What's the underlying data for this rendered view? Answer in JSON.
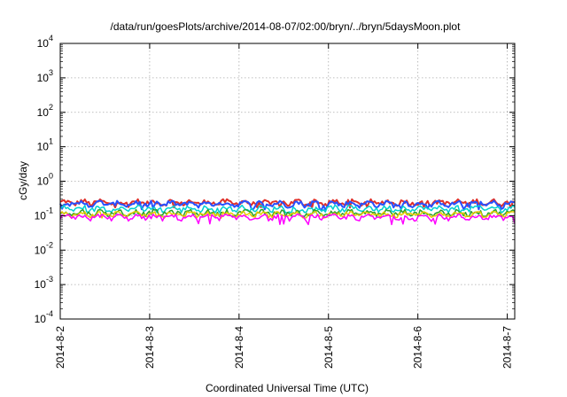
{
  "chart_data": {
    "type": "line",
    "title": "/data/run/goesPlots/archive/2014-08-07/02:00/bryn/../bryn/5daysMoon.plot",
    "xlabel": "Coordinated Universal Time (UTC)",
    "ylabel": "cGy/day",
    "xscale": "time",
    "xlim": [
      "2014-08-02T00:00",
      "2014-08-07T02:00"
    ],
    "x_ticks": [
      "2014-8-2",
      "2014-8-3",
      "2014-8-4",
      "2014-8-5",
      "2014-8-6",
      "2014-8-7"
    ],
    "yscale": "log",
    "ylim": [
      0.0001,
      10000
    ],
    "y_ticks": [
      {
        "base": "10",
        "exp": "-4"
      },
      {
        "base": "10",
        "exp": "-3"
      },
      {
        "base": "10",
        "exp": "-2"
      },
      {
        "base": "10",
        "exp": "-1"
      },
      {
        "base": "10",
        "exp": "0"
      },
      {
        "base": "10",
        "exp": "1"
      },
      {
        "base": "10",
        "exp": "2"
      },
      {
        "base": "10",
        "exp": "3"
      },
      {
        "base": "10",
        "exp": "4"
      }
    ],
    "grid": true,
    "series": [
      {
        "color": "#e0302a",
        "mean": 0.24,
        "min": 0.17,
        "max": 0.3
      },
      {
        "color": "#2850ff",
        "mean": 0.22,
        "min": 0.15,
        "max": 0.27
      },
      {
        "color": "#00d0d0",
        "mean": 0.16,
        "min": 0.12,
        "max": 0.2
      },
      {
        "color": "#2aa02a",
        "mean": 0.12,
        "min": 0.095,
        "max": 0.15
      },
      {
        "color": "#e8c800",
        "mean": 0.11,
        "min": 0.085,
        "max": 0.13
      },
      {
        "color": "#ff00ff",
        "mean": 0.09,
        "min": 0.055,
        "max": 0.11
      }
    ]
  }
}
